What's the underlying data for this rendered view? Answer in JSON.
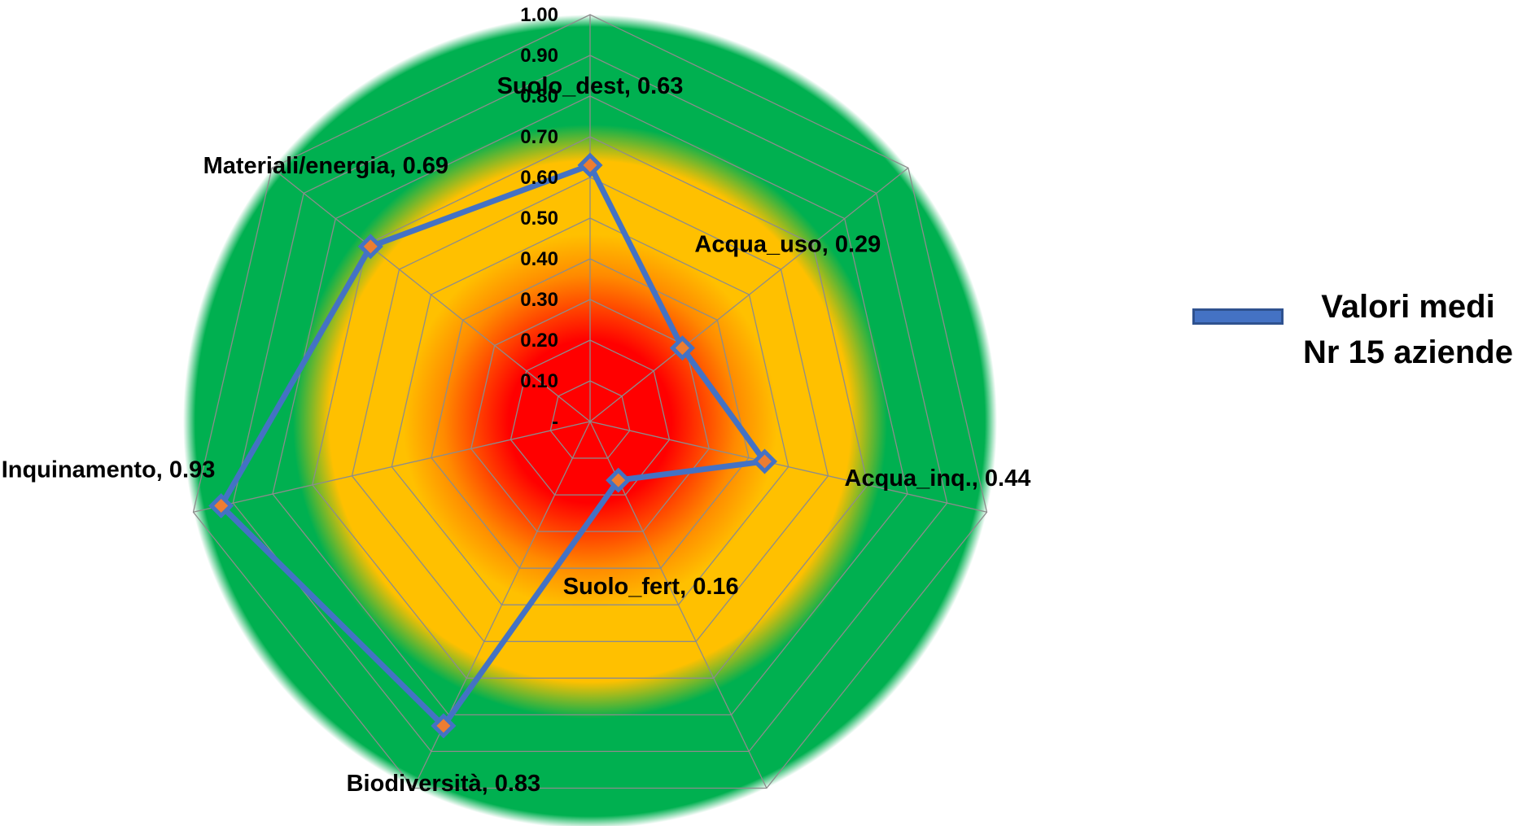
{
  "chart_data": {
    "type": "radar",
    "title": "",
    "categories": [
      "Suolo_dest",
      "Acqua_uso",
      "Acqua_inq.",
      "Suolo_fert",
      "Biodiversità",
      "Inquinamento",
      "Materiali/energia"
    ],
    "series": [
      {
        "name": "Valori medi Nr 15 aziende",
        "values": [
          0.63,
          0.29,
          0.44,
          0.16,
          0.83,
          0.93,
          0.69
        ]
      }
    ],
    "point_labels": [
      "Suolo_dest,  0.63",
      "Acqua_uso,  0.29",
      "Acqua_inq.,  0.44",
      "Suolo_fert,  0.16",
      "Biodiversità,  0.83",
      "Inquinamento,  0.93",
      "Materiali/energia,  0.69"
    ],
    "r_ticks": [
      "-",
      "0.10",
      "0.20",
      "0.30",
      "0.40",
      "0.50",
      "0.60",
      "0.70",
      "0.80",
      "0.90",
      "1.00"
    ],
    "rlim": [
      0,
      1
    ],
    "grid": true,
    "legend_position": "right",
    "background_zones": [
      {
        "from": 0.0,
        "to": 0.3,
        "color": "#ff0000"
      },
      {
        "from": 0.3,
        "to": 0.7,
        "color": "#ffc000"
      },
      {
        "from": 0.7,
        "to": 1.0,
        "color": "#00b050"
      }
    ],
    "series_color": "#4472c4",
    "marker_fill": "#ed7d31"
  },
  "legend": {
    "line1": "Valori medi",
    "line2": "Nr 15 aziende"
  }
}
